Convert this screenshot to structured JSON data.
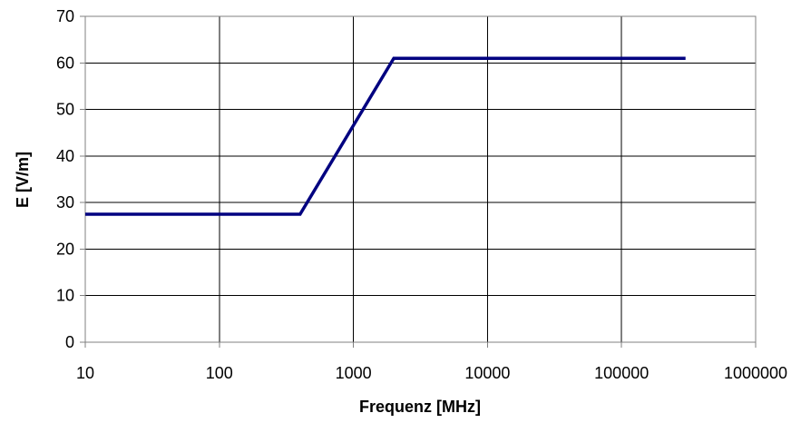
{
  "chart_data": {
    "type": "line",
    "title": "",
    "xlabel": "Frequenz [MHz]",
    "ylabel": "E [V/m]",
    "x_scale": "log",
    "xlim": [
      10,
      1000000
    ],
    "ylim": [
      0,
      70
    ],
    "x_ticks": [
      10,
      100,
      1000,
      10000,
      100000,
      1000000
    ],
    "x_tick_labels": [
      "10",
      "100",
      "1000",
      "10000",
      "100000",
      "1000000"
    ],
    "y_ticks": [
      0,
      10,
      20,
      30,
      40,
      50,
      60,
      70
    ],
    "y_tick_labels": [
      "0",
      "10",
      "20",
      "30",
      "40",
      "50",
      "60",
      "70"
    ],
    "grid": true,
    "legend": false,
    "series": [
      {
        "color": "#000080",
        "points": [
          {
            "x": 10,
            "y": 27.5
          },
          {
            "x": 400,
            "y": 27.5
          },
          {
            "x": 2000,
            "y": 61
          },
          {
            "x": 300000,
            "y": 61
          }
        ]
      }
    ]
  },
  "colors": {
    "background": "#ffffff",
    "grid": "#000000",
    "axis": "#808080",
    "line": "#000080"
  }
}
